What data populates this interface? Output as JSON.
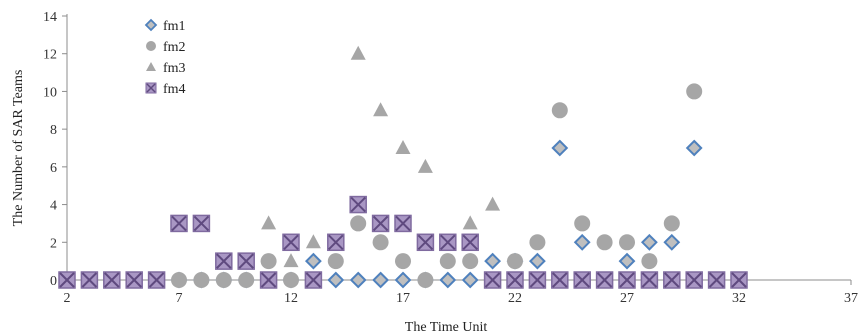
{
  "chart_data": {
    "type": "scatter",
    "title": "",
    "xlabel": "The Time Unit",
    "ylabel": "The Number of SAR Teams",
    "xlim": [
      2,
      37
    ],
    "ylim": [
      0,
      14
    ],
    "x_ticks": [
      2,
      7,
      12,
      17,
      22,
      27,
      32,
      37
    ],
    "y_ticks": [
      0,
      2,
      4,
      6,
      8,
      10,
      12,
      14
    ],
    "grid": false,
    "legend_position": "top-left",
    "series": [
      {
        "name": "fm1",
        "marker": "diamond",
        "color": "#4f81bd",
        "fill": "#bfbfbf",
        "points": [
          [
            2,
            0
          ],
          [
            3,
            0
          ],
          [
            4,
            0
          ],
          [
            5,
            0
          ],
          [
            6,
            0
          ],
          [
            7,
            0
          ],
          [
            8,
            0
          ],
          [
            9,
            0
          ],
          [
            10,
            0
          ],
          [
            11,
            0
          ],
          [
            12,
            0
          ],
          [
            13,
            1
          ],
          [
            14,
            0
          ],
          [
            15,
            0
          ],
          [
            16,
            0
          ],
          [
            17,
            0
          ],
          [
            18,
            0
          ],
          [
            19,
            0
          ],
          [
            20,
            0
          ],
          [
            21,
            1
          ],
          [
            22,
            1
          ],
          [
            23,
            1
          ],
          [
            24,
            7
          ],
          [
            25,
            2
          ],
          [
            26,
            0
          ],
          [
            27,
            1
          ],
          [
            28,
            2
          ],
          [
            29,
            2
          ],
          [
            30,
            7
          ],
          [
            31,
            0
          ],
          [
            32,
            0
          ]
        ]
      },
      {
        "name": "fm2",
        "marker": "circle",
        "color": "#a6a6a6",
        "points": [
          [
            7,
            0
          ],
          [
            8,
            0
          ],
          [
            9,
            0
          ],
          [
            10,
            0
          ],
          [
            11,
            1
          ],
          [
            12,
            0
          ],
          [
            13,
            0
          ],
          [
            14,
            1
          ],
          [
            15,
            3
          ],
          [
            16,
            2
          ],
          [
            17,
            1
          ],
          [
            18,
            0
          ],
          [
            19,
            1
          ],
          [
            20,
            1
          ],
          [
            21,
            0
          ],
          [
            22,
            1
          ],
          [
            23,
            2
          ],
          [
            24,
            9
          ],
          [
            25,
            3
          ],
          [
            26,
            2
          ],
          [
            27,
            2
          ],
          [
            28,
            1
          ],
          [
            29,
            3
          ],
          [
            30,
            10
          ]
        ]
      },
      {
        "name": "fm3",
        "marker": "triangle",
        "color": "#a6a6a6",
        "points": [
          [
            11,
            3
          ],
          [
            12,
            1
          ],
          [
            13,
            2
          ],
          [
            15,
            12
          ],
          [
            16,
            9
          ],
          [
            17,
            7
          ],
          [
            18,
            6
          ],
          [
            20,
            3
          ],
          [
            21,
            4
          ]
        ]
      },
      {
        "name": "fm4",
        "marker": "square-x",
        "color": "#7f6a9f",
        "fill": "#a997c4",
        "points": [
          [
            2,
            0
          ],
          [
            3,
            0
          ],
          [
            4,
            0
          ],
          [
            5,
            0
          ],
          [
            6,
            0
          ],
          [
            7,
            3
          ],
          [
            8,
            3
          ],
          [
            9,
            1
          ],
          [
            10,
            1
          ],
          [
            11,
            0
          ],
          [
            12,
            2
          ],
          [
            13,
            0
          ],
          [
            14,
            2
          ],
          [
            15,
            4
          ],
          [
            16,
            3
          ],
          [
            17,
            3
          ],
          [
            18,
            2
          ],
          [
            19,
            2
          ],
          [
            20,
            2
          ],
          [
            21,
            0
          ],
          [
            22,
            0
          ],
          [
            23,
            0
          ],
          [
            24,
            0
          ],
          [
            25,
            0
          ],
          [
            26,
            0
          ],
          [
            27,
            0
          ],
          [
            28,
            0
          ],
          [
            29,
            0
          ],
          [
            30,
            0
          ],
          [
            31,
            0
          ],
          [
            32,
            0
          ]
        ]
      }
    ]
  }
}
